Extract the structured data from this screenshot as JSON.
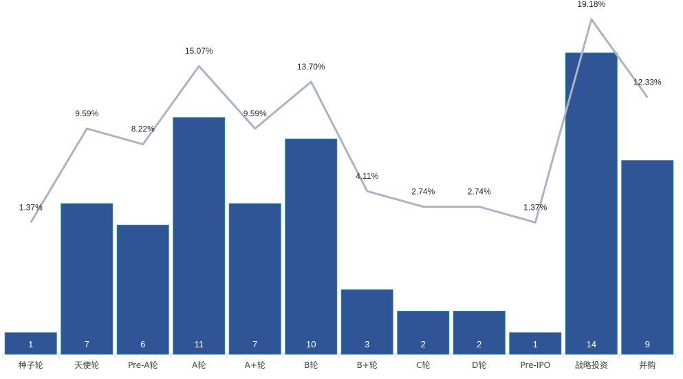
{
  "chart_data": {
    "type": "bar",
    "categories": [
      "种子轮",
      "天使轮",
      "Pre-A轮",
      "A轮",
      "A+轮",
      "B轮",
      "B+轮",
      "C轮",
      "D轮",
      "Pre-IPO",
      "战略投资",
      "并购"
    ],
    "series": [
      {
        "type": "bar",
        "values": [
          1,
          7,
          6,
          11,
          7,
          10,
          3,
          2,
          2,
          1,
          14,
          9
        ]
      },
      {
        "type": "line",
        "values": [
          1.37,
          9.59,
          8.22,
          15.07,
          9.59,
          13.7,
          4.11,
          2.74,
          2.74,
          1.37,
          19.18,
          12.33
        ],
        "labels": [
          "1.37%",
          "9.59%",
          "8.22%",
          "15.07%",
          "9.59%",
          "13.70%",
          "4.11%",
          "2.74%",
          "2.74%",
          "1.37%",
          "19.18%",
          "12.33%"
        ]
      }
    ],
    "title": "",
    "xlabel": "",
    "ylabel": "",
    "ylim_bar": [
      0,
      14
    ],
    "ylim_line_percent": [
      0,
      20
    ],
    "legend": "none",
    "grid": false,
    "colors": {
      "bar": "#2f5597",
      "bar_edge": "#1f8a8a",
      "line": "#aab4c6"
    }
  }
}
